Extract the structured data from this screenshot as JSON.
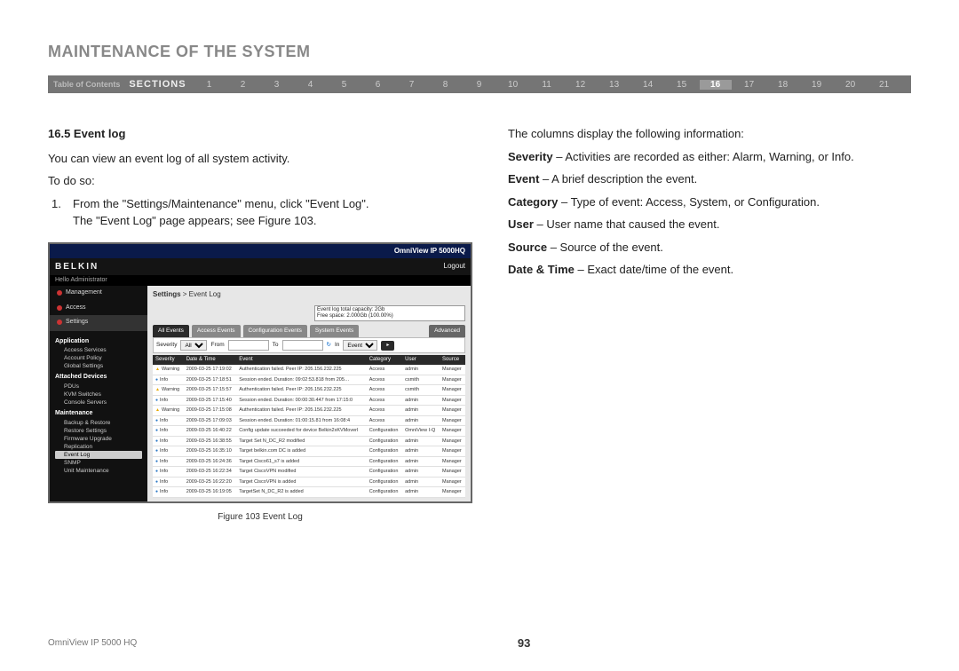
{
  "page_title": "MAINTENANCE OF THE SYSTEM",
  "nav": {
    "toc_label": "Table of Contents",
    "sections_label": "SECTIONS",
    "numbers": [
      "1",
      "2",
      "3",
      "4",
      "5",
      "6",
      "7",
      "8",
      "9",
      "10",
      "11",
      "12",
      "13",
      "14",
      "15",
      "16",
      "17",
      "18",
      "19",
      "20",
      "21"
    ],
    "active": "16"
  },
  "left": {
    "subhead": "16.5 Event log",
    "intro": "You can view an event log of all system activity.",
    "todo": "To do so:",
    "step_num": "1.",
    "step_line1": "From the \"Settings/Maintenance\" menu, click \"Event Log\".",
    "step_line2": "The \"Event Log\" page appears; see Figure 103."
  },
  "right": {
    "intro": "The columns display the following information:",
    "defs": [
      {
        "term": "Severity",
        "desc": " – Activities are recorded as either: Alarm, Warning, or Info."
      },
      {
        "term": "Event",
        "desc": " – A brief description the event."
      },
      {
        "term": "Category",
        "desc": " – Type of event: Access, System, or Configuration."
      },
      {
        "term": "User",
        "desc": " – User name that caused the event."
      },
      {
        "term": "Source",
        "desc": " – Source of the event."
      },
      {
        "term": "Date & Time",
        "desc": " – Exact date/time of the event."
      }
    ]
  },
  "figure": {
    "caption": "Figure 103 Event Log",
    "titlebar": "OmniView IP 5000HQ",
    "brand": "BELKIN",
    "hello": "Hello Administrator",
    "logout": "Logout",
    "nav_items": [
      {
        "label": "Management",
        "sel": false
      },
      {
        "label": "Access",
        "sel": false
      },
      {
        "label": "Settings",
        "sel": true
      }
    ],
    "tree": [
      {
        "type": "group",
        "label": "Application"
      },
      {
        "type": "leaf",
        "label": "Access Services"
      },
      {
        "type": "leaf",
        "label": "Account Policy"
      },
      {
        "type": "leaf",
        "label": "Global Settings"
      },
      {
        "type": "group",
        "label": "Attached Devices"
      },
      {
        "type": "leaf",
        "label": "PDUs"
      },
      {
        "type": "leaf",
        "label": "KVM Switches"
      },
      {
        "type": "leaf",
        "label": "Console Servers"
      },
      {
        "type": "group",
        "label": "Maintenance"
      },
      {
        "type": "leaf",
        "label": "Backup & Restore"
      },
      {
        "type": "leaf",
        "label": "Restore Settings"
      },
      {
        "type": "leaf",
        "label": "Firmware Upgrade"
      },
      {
        "type": "leaf",
        "label": "Replication"
      },
      {
        "type": "leaf",
        "label": "Event Log",
        "hilite": true
      },
      {
        "type": "leaf",
        "label": "SNMP"
      },
      {
        "type": "leaf",
        "label": "Unit Maintenance"
      }
    ],
    "breadcrumb_bold": "Settings",
    "breadcrumb_rest": " > Event Log",
    "capacity_line1": "Event log total capacity: 2Gb",
    "capacity_line2": "Free space: 2.000Gb (100.00%)",
    "tabs": [
      "All Events",
      "Access Events",
      "Configuration Events",
      "System Events"
    ],
    "tab_adv": "Advanced",
    "filter": {
      "severity_label": "Severity",
      "severity_value": "All",
      "from_label": "From",
      "to_label": "To",
      "in_label": "In",
      "in_value": "Event"
    },
    "columns": [
      "Severity",
      "Date & Time",
      "Event",
      "Category",
      "User",
      "Source"
    ],
    "rows": [
      {
        "sev": "warn",
        "sev_label": "Warning",
        "dt": "2009-03-25 17:19:02",
        "ev": "Authentication failed. Peer IP: 205.156.232.225",
        "cat": "Access",
        "user": "admin",
        "src": "Manager"
      },
      {
        "sev": "info",
        "sev_label": "Info",
        "dt": "2009-03-25 17:18:51",
        "ev": "Session ended. Duration: 09:02:53.818 from 205…",
        "cat": "Access",
        "user": "csmith",
        "src": "Manager"
      },
      {
        "sev": "warn",
        "sev_label": "Warning",
        "dt": "2009-03-25 17:15:57",
        "ev": "Authentication failed. Peer IP: 205.156.232.225",
        "cat": "Access",
        "user": "csmith",
        "src": "Manager"
      },
      {
        "sev": "info",
        "sev_label": "Info",
        "dt": "2009-03-25 17:15:40",
        "ev": "Session ended. Duration: 00:00:30.447 from 17:15:0",
        "cat": "Access",
        "user": "admin",
        "src": "Manager"
      },
      {
        "sev": "warn",
        "sev_label": "Warning",
        "dt": "2009-03-25 17:15:08",
        "ev": "Authentication failed. Peer IP: 205.156.232.225",
        "cat": "Access",
        "user": "admin",
        "src": "Manager"
      },
      {
        "sev": "info",
        "sev_label": "Info",
        "dt": "2009-03-25 17:09:03",
        "ev": "Session ended. Duration: 01:00:15.81 from 16:08:4",
        "cat": "Access",
        "user": "admin",
        "src": "Manager"
      },
      {
        "sev": "info",
        "sev_label": "Info",
        "dt": "2009-03-25 16:40:22",
        "ev": "Config update succeeded for device Belkin2xKVMoverI",
        "cat": "Configuration",
        "user": "OmniView I-Q",
        "src": "Manager"
      },
      {
        "sev": "info",
        "sev_label": "Info",
        "dt": "2009-03-25 16:38:55",
        "ev": "Target Set N_DC_R2 modified",
        "cat": "Configuration",
        "user": "admin",
        "src": "Manager"
      },
      {
        "sev": "info",
        "sev_label": "Info",
        "dt": "2009-03-25 16:35:10",
        "ev": "Target belkin.com DC is added",
        "cat": "Configuration",
        "user": "admin",
        "src": "Manager"
      },
      {
        "sev": "info",
        "sev_label": "Info",
        "dt": "2009-03-25 16:24:36",
        "ev": "Target Cisco61_s7 is added",
        "cat": "Configuration",
        "user": "admin",
        "src": "Manager"
      },
      {
        "sev": "info",
        "sev_label": "Info",
        "dt": "2009-03-25 16:22:34",
        "ev": "Target CiscoVPN modified",
        "cat": "Configuration",
        "user": "admin",
        "src": "Manager"
      },
      {
        "sev": "info",
        "sev_label": "Info",
        "dt": "2009-03-25 16:22:20",
        "ev": "Target CiscoVPN is added",
        "cat": "Configuration",
        "user": "admin",
        "src": "Manager"
      },
      {
        "sev": "info",
        "sev_label": "Info",
        "dt": "2009-03-25 16:19:05",
        "ev": "TargetSet N_DC_R2 is added",
        "cat": "Configuration",
        "user": "admin",
        "src": "Manager"
      }
    ]
  },
  "footer": {
    "product": "OmniView IP 5000 HQ",
    "page": "93"
  }
}
